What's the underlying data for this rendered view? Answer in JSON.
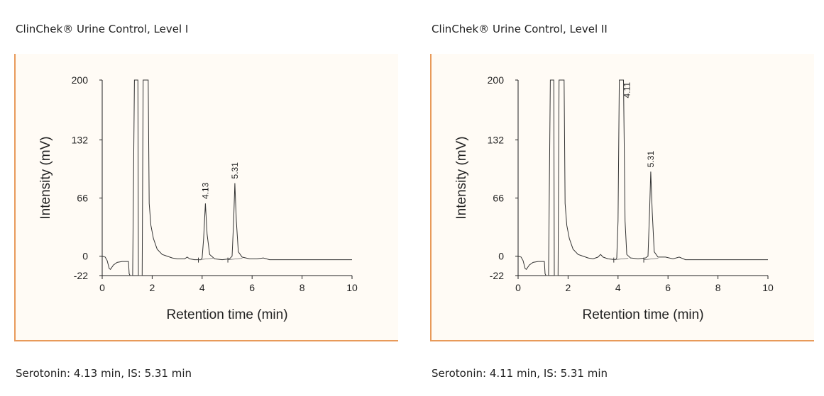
{
  "chart_data": [
    {
      "type": "line",
      "title": "ClinChek® Urine Control, Level I",
      "caption": "Serotonin: 4.13 min, IS: 5.31 min",
      "xlabel": "Retention time (min)",
      "ylabel": "Intensity (mV)",
      "xlim": [
        0,
        10
      ],
      "ylim": [
        -22,
        200
      ],
      "x_ticks": [
        "0",
        "2",
        "4",
        "6",
        "8",
        "10"
      ],
      "y_ticks": [
        "200",
        "132",
        "66",
        "0",
        "-22"
      ],
      "peaks": [
        {
          "label": "4.13",
          "x": 4.13,
          "y": 60
        },
        {
          "label": "5.31",
          "x": 5.31,
          "y": 83
        }
      ],
      "trace": [
        [
          0,
          0
        ],
        [
          0.12,
          -1
        ],
        [
          0.2,
          -5
        ],
        [
          0.28,
          -14
        ],
        [
          0.33,
          -15
        ],
        [
          0.45,
          -10
        ],
        [
          0.6,
          -7
        ],
        [
          0.8,
          -6
        ],
        [
          1.05,
          -6
        ],
        [
          1.08,
          -20
        ],
        [
          1.12,
          -22
        ],
        [
          1.22,
          -22
        ],
        [
          1.29,
          200
        ],
        [
          1.43,
          200
        ],
        [
          1.45,
          -22
        ],
        [
          1.6,
          -22
        ],
        [
          1.64,
          200
        ],
        [
          1.84,
          200
        ],
        [
          1.88,
          60
        ],
        [
          1.95,
          35
        ],
        [
          2.05,
          20
        ],
        [
          2.2,
          8
        ],
        [
          2.4,
          2
        ],
        [
          2.6,
          0
        ],
        [
          2.8,
          -2
        ],
        [
          3.0,
          -3
        ],
        [
          3.3,
          -3
        ],
        [
          3.4,
          -1
        ],
        [
          3.5,
          -3
        ],
        [
          3.7,
          -4
        ],
        [
          3.95,
          -4
        ],
        [
          4.0,
          -2
        ],
        [
          4.06,
          20
        ],
        [
          4.13,
          60
        ],
        [
          4.2,
          25
        ],
        [
          4.3,
          2
        ],
        [
          4.5,
          -3
        ],
        [
          4.8,
          -4
        ],
        [
          5.1,
          -3
        ],
        [
          5.2,
          0
        ],
        [
          5.26,
          40
        ],
        [
          5.31,
          83
        ],
        [
          5.37,
          40
        ],
        [
          5.45,
          5
        ],
        [
          5.6,
          -1
        ],
        [
          5.9,
          -3
        ],
        [
          6.2,
          -3
        ],
        [
          6.45,
          -2
        ],
        [
          6.7,
          -4
        ],
        [
          7.5,
          -4
        ],
        [
          8.5,
          -4
        ],
        [
          10,
          -4
        ]
      ]
    },
    {
      "type": "line",
      "title": "ClinChek® Urine Control, Level II",
      "caption": "Serotonin: 4.11 min, IS: 5.31 min",
      "xlabel": "Retention time (min)",
      "ylabel": "Intensity (mV)",
      "xlim": [
        0,
        10
      ],
      "ylim": [
        -22,
        200
      ],
      "x_ticks": [
        "0",
        "2",
        "4",
        "6",
        "8",
        "10"
      ],
      "y_ticks": [
        "200",
        "132",
        "66",
        "0",
        "-22"
      ],
      "peaks": [
        {
          "label": "4.11",
          "x": 4.11,
          "y": 200
        },
        {
          "label": "5.31",
          "x": 5.31,
          "y": 96
        }
      ],
      "trace": [
        [
          0,
          0
        ],
        [
          0.12,
          -1
        ],
        [
          0.2,
          -5
        ],
        [
          0.28,
          -14
        ],
        [
          0.33,
          -15
        ],
        [
          0.45,
          -10
        ],
        [
          0.6,
          -7
        ],
        [
          0.8,
          -6
        ],
        [
          1.05,
          -6
        ],
        [
          1.08,
          -20
        ],
        [
          1.12,
          -22
        ],
        [
          1.22,
          -22
        ],
        [
          1.29,
          200
        ],
        [
          1.43,
          200
        ],
        [
          1.45,
          -22
        ],
        [
          1.6,
          -22
        ],
        [
          1.64,
          200
        ],
        [
          1.84,
          200
        ],
        [
          1.88,
          60
        ],
        [
          1.95,
          35
        ],
        [
          2.05,
          20
        ],
        [
          2.2,
          8
        ],
        [
          2.4,
          2
        ],
        [
          2.6,
          0
        ],
        [
          2.8,
          -2
        ],
        [
          3.0,
          -3
        ],
        [
          3.2,
          -1
        ],
        [
          3.3,
          2
        ],
        [
          3.4,
          -1
        ],
        [
          3.6,
          -3
        ],
        [
          3.9,
          -4
        ],
        [
          3.95,
          -2
        ],
        [
          4.0,
          40
        ],
        [
          4.05,
          200
        ],
        [
          4.22,
          200
        ],
        [
          4.28,
          40
        ],
        [
          4.35,
          2
        ],
        [
          4.5,
          -2
        ],
        [
          4.8,
          -3
        ],
        [
          5.1,
          -2
        ],
        [
          5.2,
          0
        ],
        [
          5.26,
          50
        ],
        [
          5.31,
          96
        ],
        [
          5.37,
          50
        ],
        [
          5.45,
          5
        ],
        [
          5.6,
          -1
        ],
        [
          5.9,
          -1
        ],
        [
          6.2,
          -3
        ],
        [
          6.45,
          -1
        ],
        [
          6.7,
          -4
        ],
        [
          7.5,
          -4
        ],
        [
          8.5,
          -4
        ],
        [
          10,
          -4
        ]
      ]
    }
  ]
}
